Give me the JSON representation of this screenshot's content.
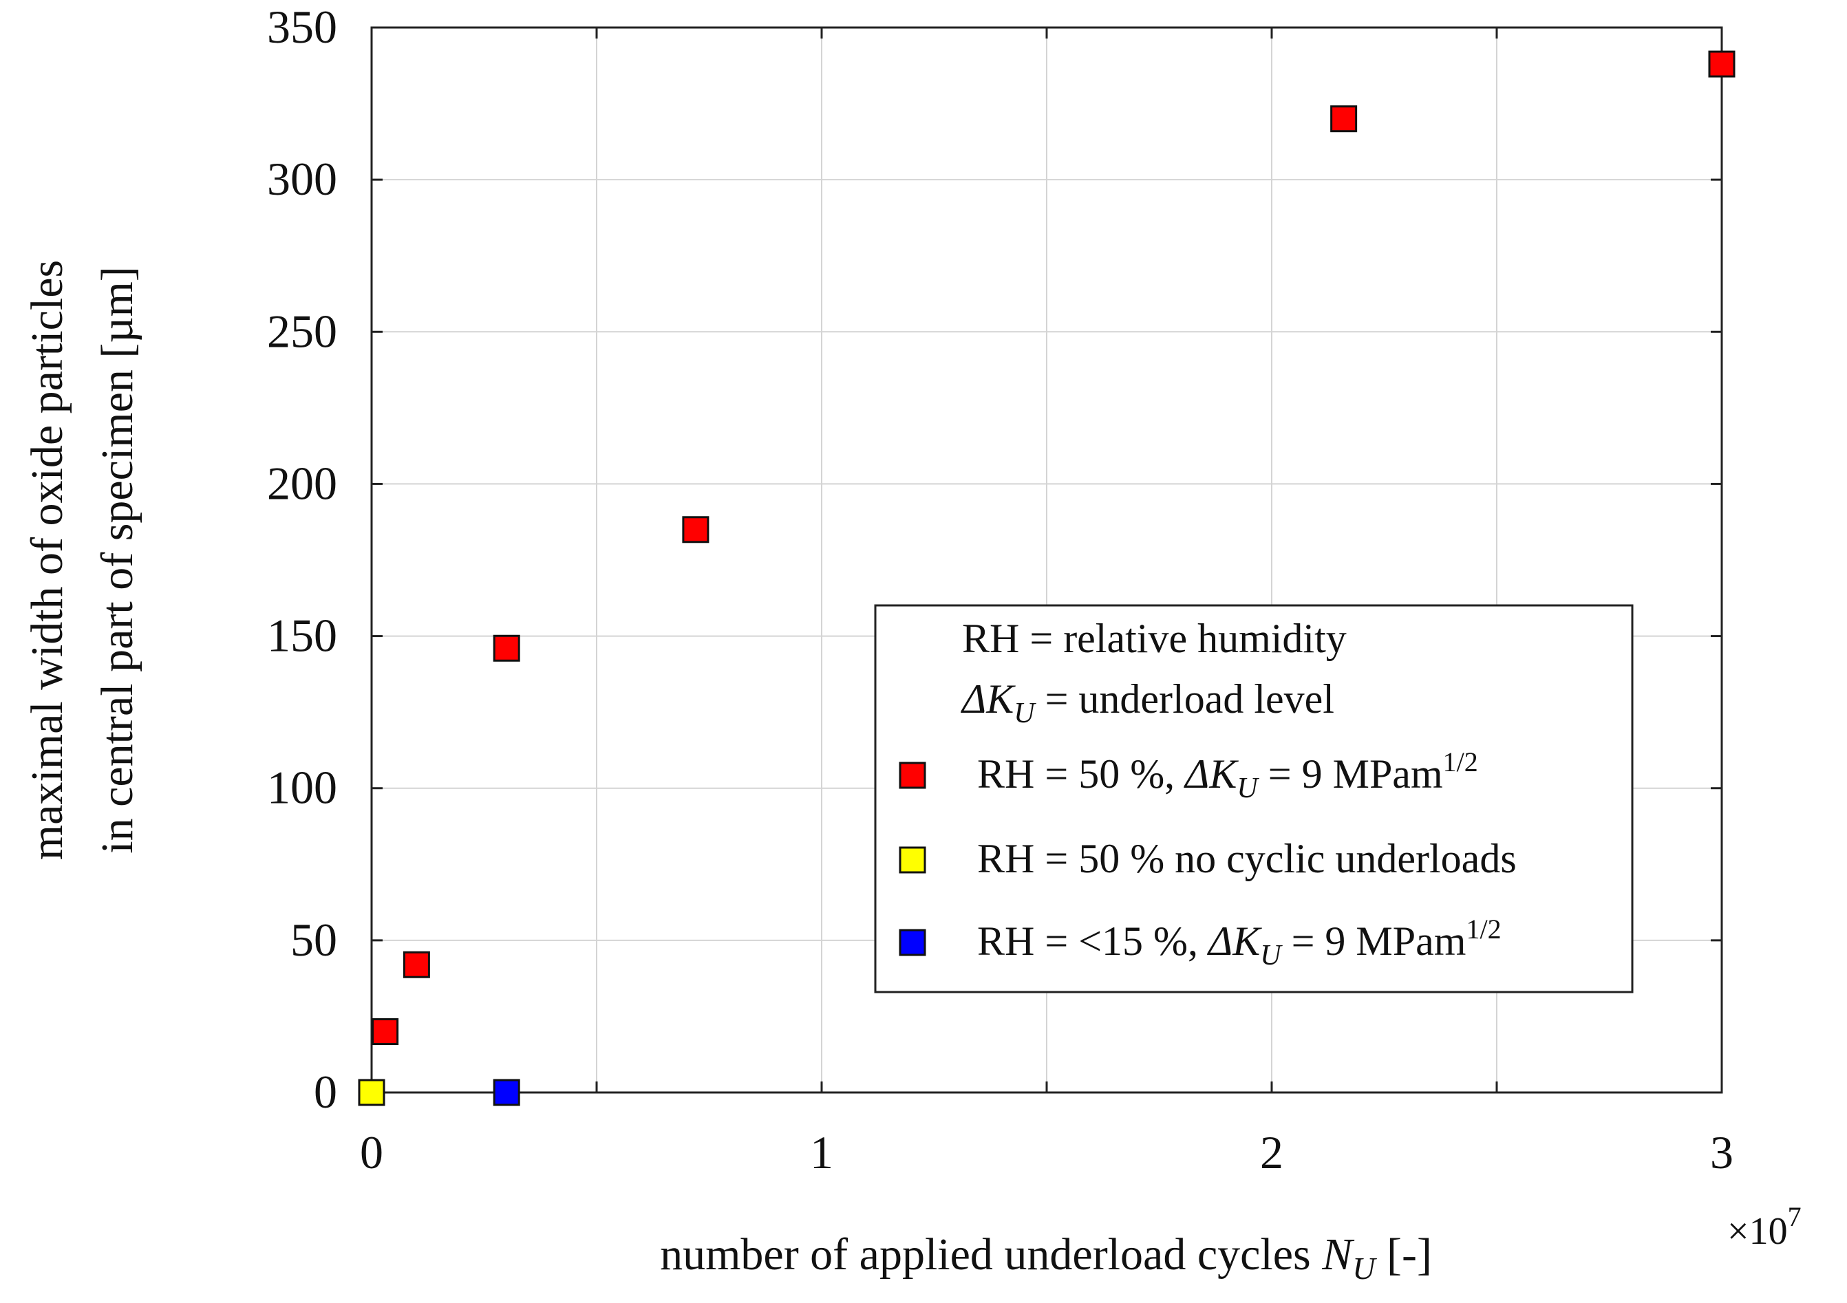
{
  "chart_data": {
    "type": "scatter",
    "title": "",
    "xlabel": "number of applied underload cycles",
    "xlabel_var": "N",
    "xlabel_sub": "U",
    "xlabel_unit": "[-]",
    "ylabel_line1": "maximal width of oxide particles",
    "ylabel_line2": "in central part of specimen [µm]",
    "x_scale_note": "×10",
    "x_scale_exp": "7",
    "xlim": [
      0,
      3
    ],
    "ylim": [
      0,
      350
    ],
    "xticks": [
      0,
      0.5,
      1,
      1.5,
      2,
      2.5,
      3
    ],
    "xtick_labels": [
      "0",
      "",
      "1",
      "",
      "2",
      "",
      "3"
    ],
    "yticks": [
      0,
      50,
      100,
      150,
      200,
      250,
      300,
      350
    ],
    "ytick_labels": [
      "0",
      "50",
      "100",
      "150",
      "200",
      "250",
      "300",
      "350"
    ],
    "grid": true,
    "legend_position": "center-right",
    "legend_notes": [
      {
        "text": "RH = relative humidity"
      },
      {
        "var": "ΔK",
        "sub": "U",
        "text": " = underload level"
      }
    ],
    "series": [
      {
        "name": "RH = 50 %, ΔKU = 9 MPam1/2",
        "label_parts": {
          "pre": "RH = 50 %, ",
          "var": "ΔK",
          "sub": "U",
          "mid": " = 9 MPam",
          "sup": "1/2"
        },
        "color": "#ff0000",
        "x": [
          0.03,
          0.1,
          0.3,
          0.72,
          2.16,
          3.0
        ],
        "y": [
          20,
          42,
          146,
          185,
          320,
          338
        ]
      },
      {
        "name": "RH = 50 % no cyclic underloads",
        "label_parts": {
          "pre": "RH = 50 % no cyclic underloads"
        },
        "color": "#ffff00",
        "x": [
          0
        ],
        "y": [
          0
        ]
      },
      {
        "name": "RH = <15 %, ΔKU = 9 MPam1/2",
        "label_parts": {
          "pre": "RH = <15 %, ",
          "var": "ΔK",
          "sub": "U",
          "mid": " = 9 MPam",
          "sup": "1/2"
        },
        "color": "#0000ff",
        "x": [
          0.3
        ],
        "y": [
          0
        ]
      }
    ]
  }
}
